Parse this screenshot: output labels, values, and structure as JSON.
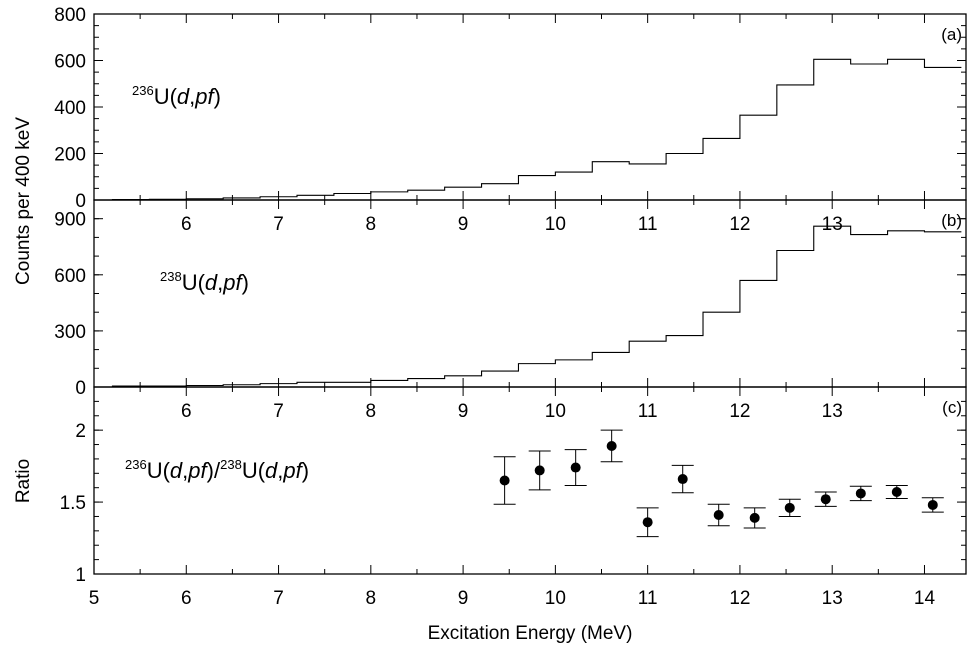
{
  "chart_data": [
    {
      "panel": "(a)",
      "type": "line",
      "label": {
        "sup": "236",
        "main": "U(",
        "it1": "d",
        "comma": ",",
        "it2": "pf",
        "close": ")"
      },
      "ylabel": "Counts per 400 keV",
      "xlim": [
        5,
        14.45
      ],
      "ylim": [
        0,
        800
      ],
      "yticks": [
        "0",
        "200",
        "400",
        "600",
        "800"
      ],
      "xticks": [
        "6",
        "7",
        "8",
        "9",
        "10",
        "11",
        "12",
        "13"
      ],
      "bin_width_mev": 0.4,
      "x": [
        5.4,
        5.8,
        6.2,
        6.6,
        7.0,
        7.4,
        7.8,
        8.2,
        8.6,
        9.0,
        9.4,
        9.8,
        10.2,
        10.6,
        11.0,
        11.4,
        11.8,
        12.2,
        12.6,
        13.0,
        13.4,
        13.8,
        14.2
      ],
      "values": [
        2,
        3,
        5,
        9,
        14,
        20,
        28,
        35,
        42,
        55,
        70,
        105,
        120,
        165,
        155,
        200,
        265,
        365,
        495,
        605,
        585,
        605,
        570
      ]
    },
    {
      "panel": "(b)",
      "type": "line",
      "label": {
        "sup": "238",
        "main": "U(",
        "it1": "d",
        "comma": ",",
        "it2": "pf",
        "close": ")"
      },
      "xlim": [
        5,
        14.45
      ],
      "ylim": [
        0,
        1000
      ],
      "yticks": [
        "0",
        "300",
        "600",
        "900"
      ],
      "xticks": [
        "6",
        "7",
        "8",
        "9",
        "10",
        "11",
        "12",
        "13"
      ],
      "x": [
        5.4,
        5.8,
        6.2,
        6.6,
        7.0,
        7.4,
        7.8,
        8.2,
        8.6,
        9.0,
        9.4,
        9.8,
        10.2,
        10.6,
        11.0,
        11.4,
        11.8,
        12.2,
        12.6,
        13.0,
        13.4,
        13.8,
        14.2
      ],
      "values": [
        5,
        5,
        8,
        12,
        18,
        25,
        25,
        35,
        45,
        60,
        85,
        125,
        145,
        185,
        245,
        275,
        400,
        570,
        730,
        860,
        815,
        835,
        830
      ]
    },
    {
      "panel": "(c)",
      "type": "scatter",
      "label": {
        "sup1": "236",
        "main1": "U(",
        "it1": "d",
        "comma1": ",",
        "it2": "pf",
        "close1": ")/",
        "sup2": "238",
        "main2": "U(",
        "it3": "d",
        "comma2": ",",
        "it4": "pf",
        "close2": ")"
      },
      "ylabel": "Ratio",
      "xlabel": "Excitation Energy (MeV)",
      "xlim": [
        5,
        14.45
      ],
      "ylim": [
        1,
        2.3
      ],
      "yticks": [
        "1",
        "1.5",
        "2"
      ],
      "xticks": [
        "5",
        "6",
        "7",
        "8",
        "9",
        "10",
        "11",
        "12",
        "13",
        "14"
      ],
      "points": [
        {
          "x": 9.45,
          "y": 1.65,
          "err": 0.165
        },
        {
          "x": 9.83,
          "y": 1.72,
          "err": 0.135
        },
        {
          "x": 10.22,
          "y": 1.74,
          "err": 0.125
        },
        {
          "x": 10.61,
          "y": 1.89,
          "err": 0.11
        },
        {
          "x": 11.0,
          "y": 1.36,
          "err": 0.1
        },
        {
          "x": 11.38,
          "y": 1.66,
          "err": 0.095
        },
        {
          "x": 11.77,
          "y": 1.41,
          "err": 0.075
        },
        {
          "x": 12.16,
          "y": 1.39,
          "err": 0.07
        },
        {
          "x": 12.54,
          "y": 1.46,
          "err": 0.06
        },
        {
          "x": 12.93,
          "y": 1.52,
          "err": 0.05
        },
        {
          "x": 13.31,
          "y": 1.56,
          "err": 0.05
        },
        {
          "x": 13.7,
          "y": 1.57,
          "err": 0.045
        },
        {
          "x": 14.09,
          "y": 1.48,
          "err": 0.05
        }
      ]
    }
  ]
}
